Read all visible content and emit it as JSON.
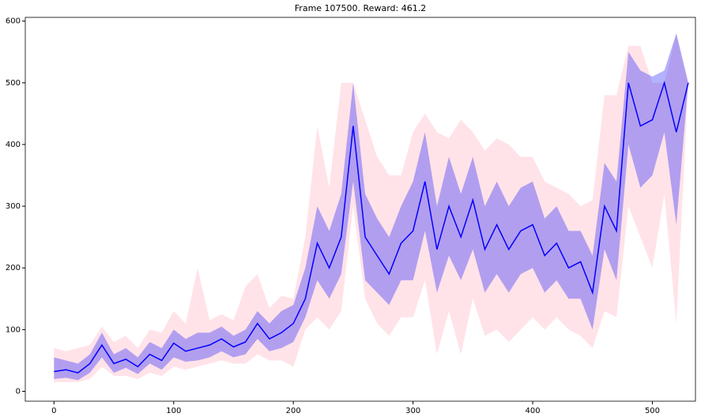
{
  "chart_data": {
    "type": "line",
    "title": "Frame 107500. Reward: 461.2",
    "x": [
      0,
      10,
      20,
      30,
      40,
      50,
      60,
      70,
      80,
      90,
      100,
      110,
      120,
      130,
      140,
      150,
      160,
      170,
      180,
      190,
      200,
      210,
      220,
      230,
      240,
      250,
      260,
      270,
      280,
      290,
      300,
      310,
      320,
      330,
      340,
      350,
      360,
      370,
      380,
      390,
      400,
      410,
      420,
      430,
      440,
      450,
      460,
      470,
      480,
      490,
      500,
      510,
      520,
      530
    ],
    "bands": [
      {
        "color": "#ffc0cb",
        "alpha": 0.45,
        "lower": [
          15,
          15,
          15,
          20,
          40,
          25,
          25,
          20,
          30,
          25,
          40,
          35,
          40,
          45,
          50,
          45,
          45,
          60,
          50,
          50,
          40,
          100,
          120,
          100,
          130,
          300,
          150,
          110,
          90,
          120,
          120,
          180,
          60,
          130,
          60,
          150,
          90,
          100,
          80,
          100,
          120,
          100,
          120,
          100,
          90,
          70,
          130,
          120,
          300,
          250,
          200,
          320,
          110,
          500
        ],
        "upper": [
          70,
          65,
          70,
          75,
          105,
          80,
          90,
          70,
          100,
          95,
          130,
          110,
          200,
          115,
          125,
          115,
          170,
          190,
          135,
          155,
          150,
          250,
          430,
          330,
          500,
          500,
          440,
          380,
          350,
          350,
          420,
          450,
          420,
          410,
          440,
          420,
          390,
          410,
          400,
          380,
          380,
          340,
          330,
          320,
          300,
          310,
          480,
          480,
          560,
          560,
          500,
          500,
          580,
          500
        ]
      },
      {
        "color": "#0000ff",
        "alpha": 0.3,
        "lower": [
          20,
          22,
          18,
          30,
          55,
          30,
          38,
          28,
          45,
          35,
          55,
          48,
          50,
          55,
          65,
          55,
          60,
          85,
          65,
          70,
          80,
          120,
          180,
          150,
          190,
          340,
          180,
          160,
          140,
          180,
          180,
          260,
          160,
          220,
          180,
          230,
          160,
          190,
          160,
          190,
          200,
          160,
          180,
          150,
          150,
          100,
          230,
          180,
          400,
          330,
          350,
          420,
          270,
          500
        ],
        "upper": [
          55,
          50,
          45,
          60,
          95,
          60,
          70,
          55,
          80,
          70,
          100,
          85,
          95,
          95,
          105,
          90,
          100,
          130,
          110,
          130,
          140,
          200,
          300,
          260,
          320,
          500,
          320,
          280,
          250,
          300,
          340,
          420,
          300,
          380,
          320,
          380,
          300,
          340,
          300,
          330,
          340,
          280,
          300,
          260,
          260,
          220,
          370,
          340,
          550,
          520,
          510,
          520,
          580,
          500
        ]
      }
    ],
    "series": [
      {
        "color": "#0000ff",
        "values": [
          32,
          35,
          30,
          45,
          75,
          45,
          52,
          40,
          60,
          50,
          78,
          65,
          70,
          75,
          85,
          72,
          80,
          110,
          85,
          95,
          110,
          150,
          240,
          200,
          250,
          430,
          250,
          220,
          190,
          240,
          260,
          340,
          230,
          300,
          250,
          310,
          230,
          270,
          230,
          260,
          270,
          220,
          240,
          200,
          210,
          160,
          300,
          260,
          500,
          430,
          440,
          500,
          420,
          500
        ]
      }
    ],
    "xlim": [
      -24,
      536
    ],
    "ylim": [
      -16,
      606
    ],
    "xticks": [
      0,
      100,
      200,
      300,
      400,
      500
    ],
    "yticks": [
      0,
      100,
      200,
      300,
      400,
      500,
      600
    ]
  }
}
